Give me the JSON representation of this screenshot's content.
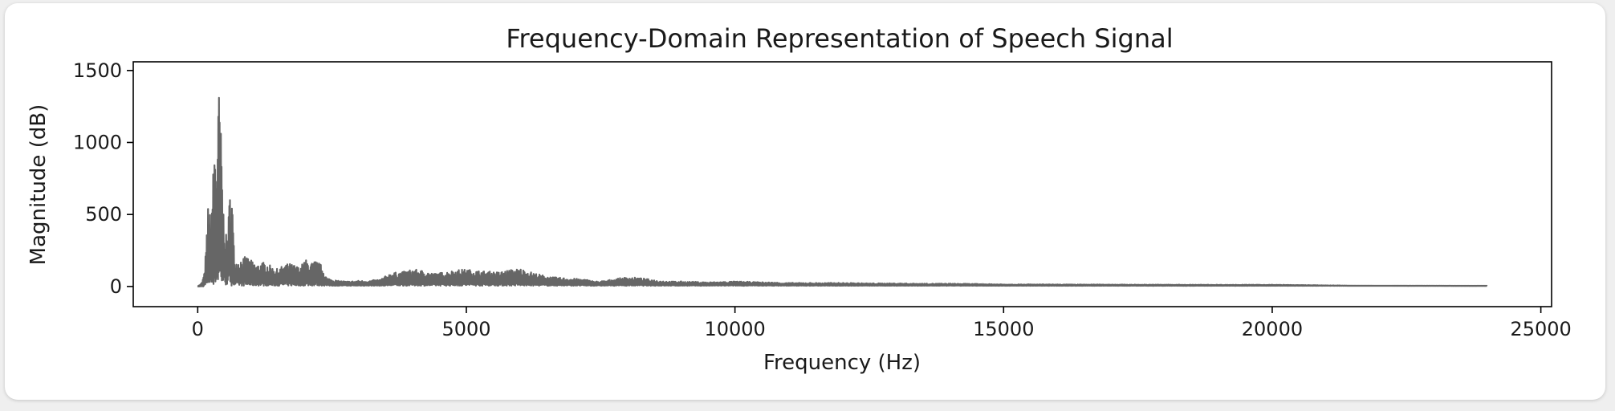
{
  "chart_data": {
    "type": "line",
    "title": "Frequency-Domain Representation of Speech Signal",
    "xlabel": "Frequency (Hz)",
    "ylabel": "Magnitude (dB)",
    "xlim": [
      -1200,
      25200
    ],
    "ylim": [
      -140,
      1560
    ],
    "xticks": [
      0,
      5000,
      10000,
      15000,
      20000,
      25000
    ],
    "yticks": [
      0,
      500,
      1000,
      1500
    ],
    "xtick_labels": [
      "0",
      "5000",
      "10000",
      "15000",
      "20000",
      "25000"
    ],
    "ytick_labels": [
      "0",
      "500",
      "1000",
      "1500"
    ],
    "grid": false,
    "legend": "none",
    "line_color": "#666666",
    "series": [
      {
        "x": [
          0,
          40,
          80,
          120,
          160,
          200,
          240,
          280,
          320,
          360,
          400,
          440,
          480,
          520,
          560,
          600,
          640,
          680,
          720,
          800,
          900,
          1000,
          1100,
          1200,
          1300,
          1400,
          1500,
          1600,
          1700,
          1800,
          1900,
          2000,
          2100,
          2200,
          2300,
          2400,
          2600,
          2800,
          3000,
          3200,
          3400,
          3600,
          3800,
          4000,
          4200,
          4400,
          4600,
          4800,
          5000,
          5200,
          5400,
          5600,
          5800,
          6000,
          6200,
          6400,
          6600,
          6800,
          7000,
          7200,
          7400,
          7600,
          7800,
          8000,
          8200,
          8400,
          8600,
          8800,
          9000,
          9500,
          10000,
          10500,
          11000,
          11500,
          12000,
          12500,
          13000,
          13500,
          14000,
          14500,
          15000,
          15500,
          16000,
          16500,
          17000,
          17500,
          18000,
          18500,
          19000,
          19500,
          20000,
          20500,
          21000,
          21500,
          22000,
          22500,
          23000,
          23500,
          24000
        ],
        "envelope_hi": [
          5,
          10,
          30,
          90,
          300,
          650,
          450,
          750,
          1050,
          900,
          1450,
          1000,
          550,
          350,
          400,
          670,
          650,
          210,
          180,
          190,
          210,
          180,
          150,
          170,
          160,
          130,
          120,
          150,
          160,
          150,
          130,
          190,
          160,
          180,
          150,
          60,
          40,
          35,
          40,
          40,
          50,
          95,
          100,
          120,
          110,
          90,
          100,
          115,
          120,
          110,
          105,
          100,
          115,
          125,
          100,
          80,
          65,
          60,
          55,
          50,
          35,
          40,
          55,
          65,
          60,
          50,
          40,
          35,
          35,
          30,
          35,
          30,
          25,
          25,
          25,
          22,
          22,
          20,
          20,
          18,
          15,
          15,
          14,
          14,
          14,
          13,
          13,
          12,
          12,
          12,
          12,
          10,
          8,
          6,
          5,
          4,
          4,
          3,
          3
        ],
        "envelope_lo": [
          0,
          0,
          0,
          0,
          0,
          5,
          10,
          10,
          10,
          10,
          10,
          10,
          10,
          10,
          10,
          10,
          5,
          5,
          5,
          5,
          5,
          5,
          5,
          5,
          5,
          5,
          5,
          5,
          5,
          5,
          5,
          5,
          5,
          5,
          5,
          5,
          5,
          5,
          5,
          5,
          5,
          5,
          5,
          5,
          5,
          5,
          5,
          5,
          5,
          5,
          5,
          5,
          5,
          5,
          5,
          5,
          5,
          5,
          5,
          5,
          5,
          5,
          5,
          5,
          5,
          5,
          5,
          5,
          5,
          5,
          5,
          5,
          5,
          5,
          5,
          5,
          5,
          5,
          5,
          5,
          5,
          5,
          5,
          5,
          5,
          5,
          5,
          5,
          5,
          5,
          5,
          5,
          5,
          5,
          5,
          5,
          5,
          5,
          5
        ]
      }
    ]
  }
}
